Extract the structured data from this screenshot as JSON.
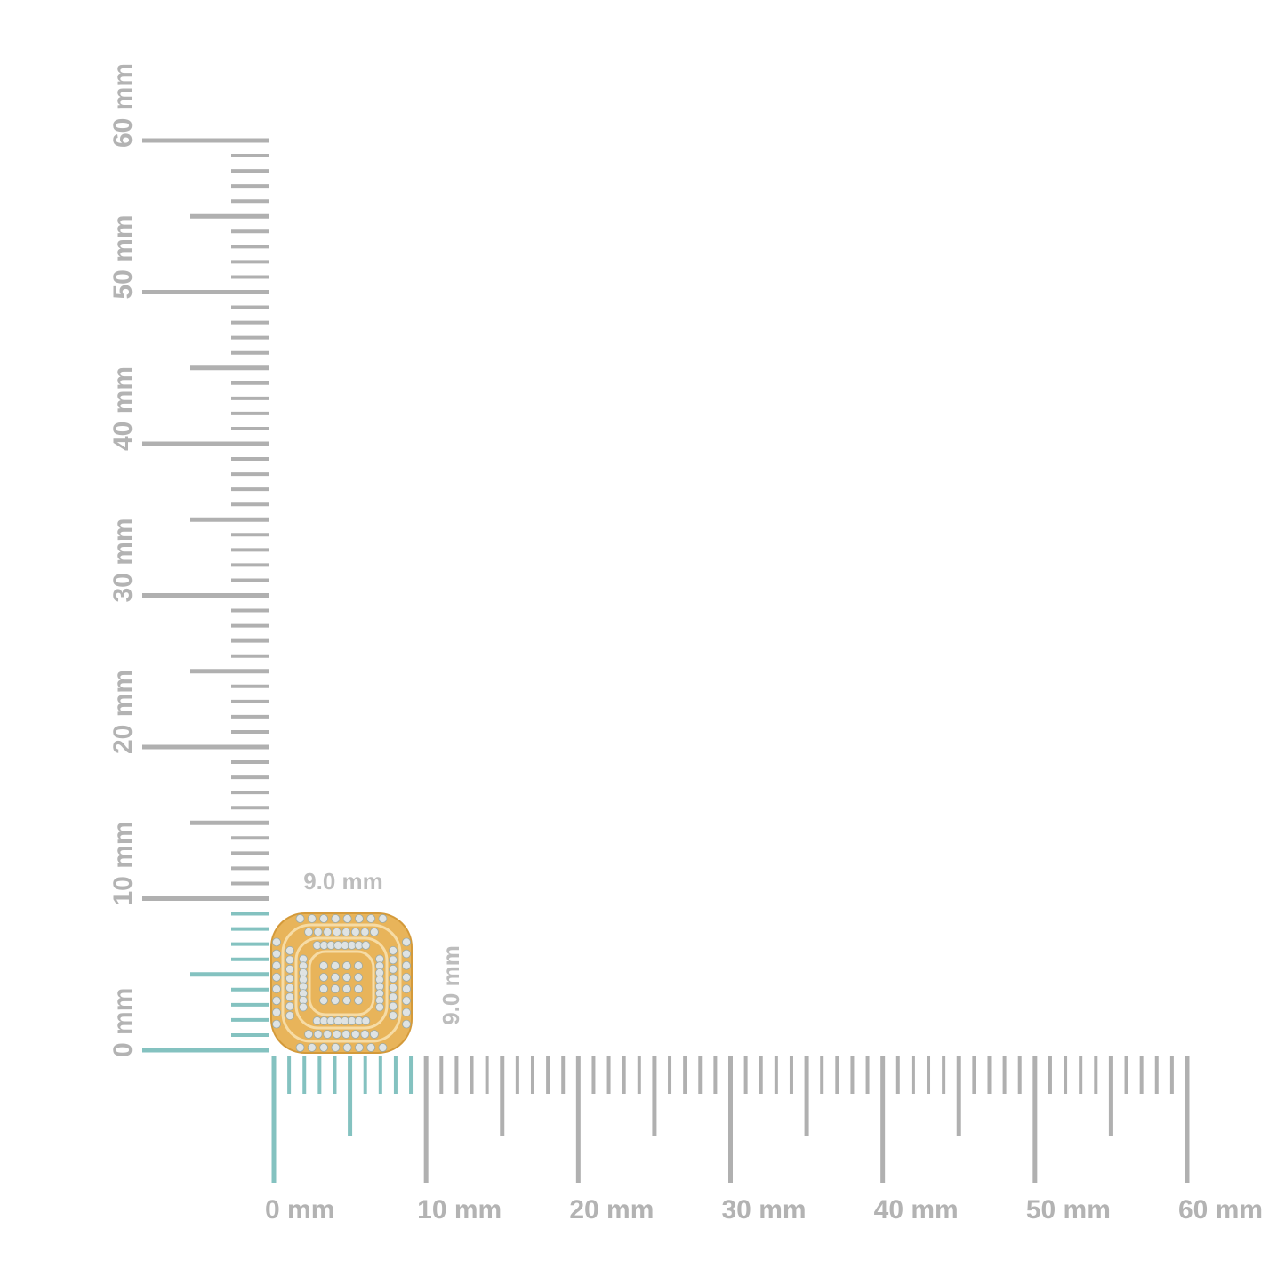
{
  "horizontal_ruler": {
    "labels": [
      "0 mm",
      "10 mm",
      "20 mm",
      "30 mm",
      "40 mm",
      "50 mm",
      "60 mm"
    ]
  },
  "vertical_ruler": {
    "labels": [
      "0 mm",
      "10 mm",
      "20 mm",
      "30 mm",
      "40 mm",
      "50 mm",
      "60 mm"
    ]
  },
  "item": {
    "width_label": "9.0 mm",
    "height_label": "9.0 mm"
  }
}
